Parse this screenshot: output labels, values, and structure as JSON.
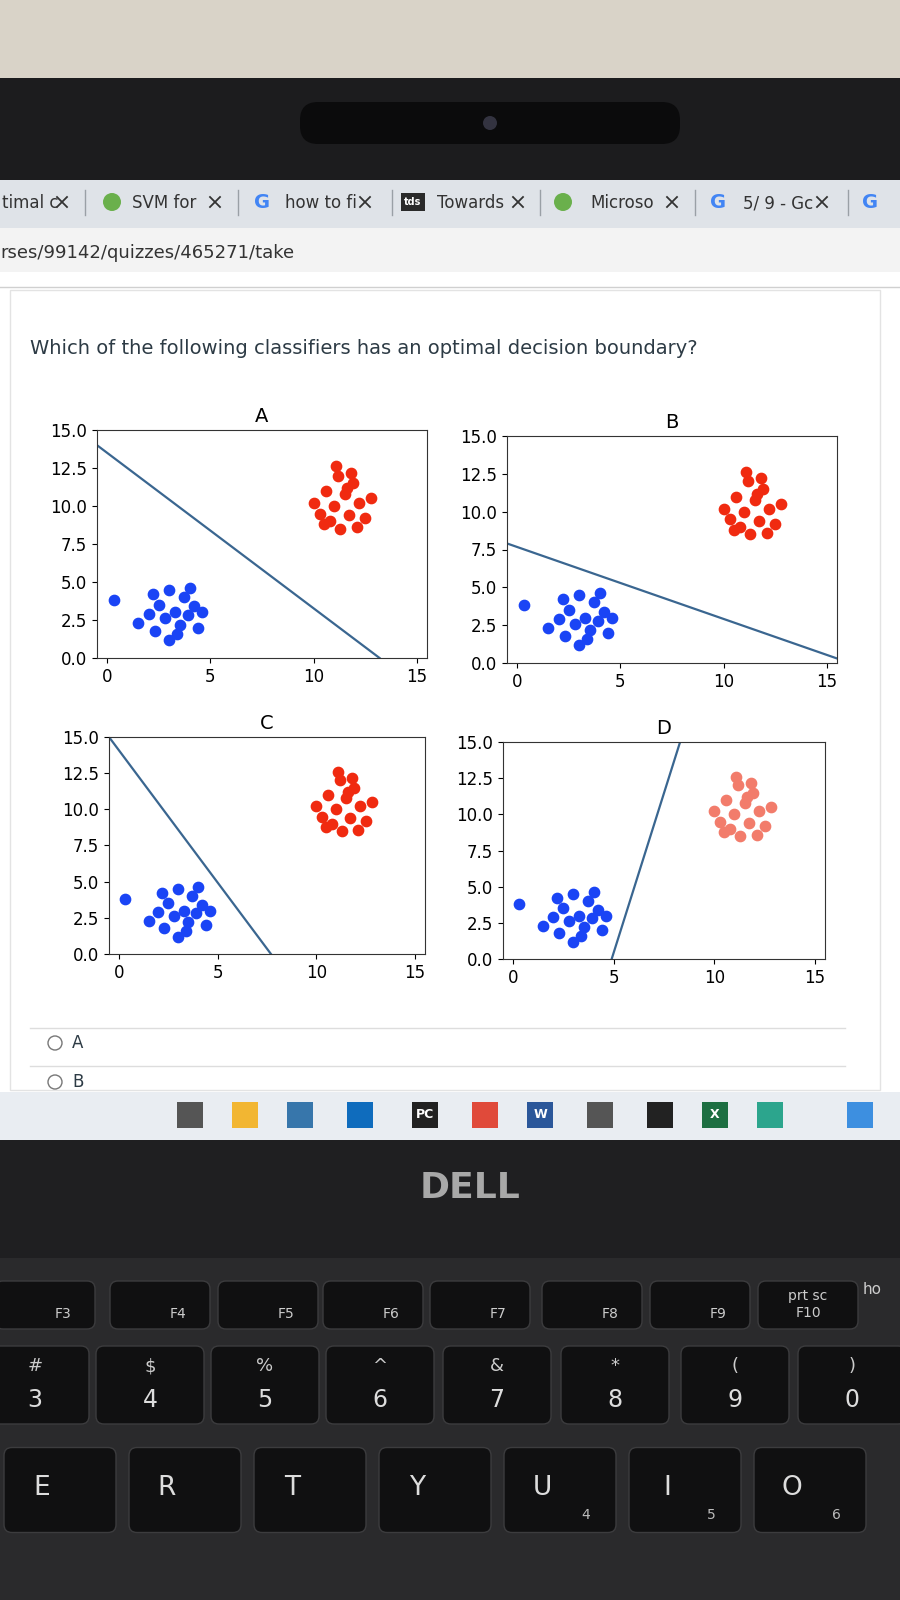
{
  "browser": {
    "tabs": [
      {
        "title": "timal c"
      },
      {
        "title": "SVM for"
      },
      {
        "title": "how to fi",
        "icon_text": "G"
      },
      {
        "title": "Towards",
        "icon_text": "tds"
      },
      {
        "title": "Microso"
      },
      {
        "title": "5/ 9 - Gc",
        "icon_text": "G"
      },
      {
        "icon_text": "G"
      }
    ],
    "url": "rses/99142/quizzes/465271/take"
  },
  "question": "Which of the following classifiers has an optimal decision boundary?",
  "chart_data": [
    {
      "type": "scatter",
      "title": "A",
      "xlim": [
        -0.5,
        15.5
      ],
      "ylim": [
        0,
        15
      ],
      "xticks": [
        0,
        5,
        10,
        15
      ],
      "yticks": [
        0.0,
        2.5,
        5.0,
        7.5,
        10.0,
        12.5,
        15.0
      ],
      "series": [
        {
          "type": "scatter",
          "color": "#1a44f5",
          "marker": "o",
          "x": [
            0.3,
            1.5,
            2.0,
            2.3,
            2.5,
            2.8,
            3.0,
            3.0,
            3.3,
            3.5,
            3.7,
            3.9,
            4.2,
            4.4,
            4.6,
            2.2,
            3.4,
            4.0
          ],
          "values": [
            3.8,
            2.3,
            2.9,
            1.8,
            3.5,
            2.6,
            4.5,
            1.2,
            3.0,
            2.2,
            4.0,
            2.8,
            3.4,
            2.0,
            3.0,
            4.2,
            1.6,
            4.6
          ]
        },
        {
          "type": "scatter",
          "color": "#f02a10",
          "marker": "o",
          "x": [
            10.0,
            10.3,
            10.6,
            10.8,
            11.0,
            11.2,
            11.3,
            11.5,
            11.7,
            11.9,
            12.2,
            12.5,
            12.8,
            11.1,
            11.8,
            10.5,
            12.1,
            11.6
          ],
          "values": [
            10.2,
            9.5,
            11.0,
            9.0,
            10.0,
            12.0,
            8.5,
            10.8,
            9.4,
            11.5,
            10.2,
            9.2,
            10.5,
            12.6,
            12.2,
            8.8,
            8.6,
            11.2
          ]
        },
        {
          "type": "line",
          "color": "#3a6690",
          "line_style": "solid",
          "x": [
            -0.5,
            13.2
          ],
          "values": [
            14.0,
            0.0
          ]
        }
      ]
    },
    {
      "type": "scatter",
      "title": "B",
      "xlim": [
        -0.5,
        15.5
      ],
      "ylim": [
        0,
        15
      ],
      "xticks": [
        0,
        5,
        10,
        15
      ],
      "yticks": [
        0.0,
        2.5,
        5.0,
        7.5,
        10.0,
        12.5,
        15.0
      ],
      "series": [
        {
          "type": "scatter",
          "color": "#1a44f5",
          "marker": "o",
          "x": [
            0.3,
            1.5,
            2.0,
            2.3,
            2.5,
            2.8,
            3.0,
            3.0,
            3.3,
            3.5,
            3.7,
            3.9,
            4.2,
            4.4,
            4.6,
            2.2,
            3.4,
            4.0
          ],
          "values": [
            3.8,
            2.3,
            2.9,
            1.8,
            3.5,
            2.6,
            4.5,
            1.2,
            3.0,
            2.2,
            4.0,
            2.8,
            3.4,
            2.0,
            3.0,
            4.2,
            1.6,
            4.6
          ]
        },
        {
          "type": "scatter",
          "color": "#f02a10",
          "marker": "o",
          "x": [
            10.0,
            10.3,
            10.6,
            10.8,
            11.0,
            11.2,
            11.3,
            11.5,
            11.7,
            11.9,
            12.2,
            12.5,
            12.8,
            11.1,
            11.8,
            10.5,
            12.1,
            11.6
          ],
          "values": [
            10.2,
            9.5,
            11.0,
            9.0,
            10.0,
            12.0,
            8.5,
            10.8,
            9.4,
            11.5,
            10.2,
            9.2,
            10.5,
            12.6,
            12.2,
            8.8,
            8.6,
            11.2
          ]
        },
        {
          "type": "line",
          "color": "#3a6690",
          "line_style": "solid",
          "x": [
            -0.5,
            15.5
          ],
          "values": [
            7.9,
            0.3
          ]
        }
      ]
    },
    {
      "type": "scatter",
      "title": "C",
      "xlim": [
        -0.5,
        15.5
      ],
      "ylim": [
        0,
        15
      ],
      "xticks": [
        0,
        5,
        10,
        15
      ],
      "yticks": [
        0.0,
        2.5,
        5.0,
        7.5,
        10.0,
        12.5,
        15.0
      ],
      "series": [
        {
          "type": "scatter",
          "color": "#1a44f5",
          "marker": "o",
          "x": [
            0.3,
            1.5,
            2.0,
            2.3,
            2.5,
            2.8,
            3.0,
            3.0,
            3.3,
            3.5,
            3.7,
            3.9,
            4.2,
            4.4,
            4.6,
            2.2,
            3.4,
            4.0
          ],
          "values": [
            3.8,
            2.3,
            2.9,
            1.8,
            3.5,
            2.6,
            4.5,
            1.2,
            3.0,
            2.2,
            4.0,
            2.8,
            3.4,
            2.0,
            3.0,
            4.2,
            1.6,
            4.6
          ]
        },
        {
          "type": "scatter",
          "color": "#f02a10",
          "marker": "o",
          "x": [
            10.0,
            10.3,
            10.6,
            10.8,
            11.0,
            11.2,
            11.3,
            11.5,
            11.7,
            11.9,
            12.2,
            12.5,
            12.8,
            11.1,
            11.8,
            10.5,
            12.1,
            11.6
          ],
          "values": [
            10.2,
            9.5,
            11.0,
            9.0,
            10.0,
            12.0,
            8.5,
            10.8,
            9.4,
            11.5,
            10.2,
            9.2,
            10.5,
            12.6,
            12.2,
            8.8,
            8.6,
            11.2
          ]
        },
        {
          "type": "line",
          "color": "#3a6690",
          "line_style": "solid",
          "x": [
            -0.5,
            7.7
          ],
          "values": [
            15.0,
            0.0
          ]
        }
      ]
    },
    {
      "type": "scatter",
      "title": "D",
      "xlim": [
        -0.5,
        15.5
      ],
      "ylim": [
        0,
        15
      ],
      "xticks": [
        0,
        5,
        10,
        15
      ],
      "yticks": [
        0.0,
        2.5,
        5.0,
        7.5,
        10.0,
        12.5,
        15.0
      ],
      "series": [
        {
          "type": "scatter",
          "color": "#1a44f5",
          "marker": "o",
          "x": [
            0.3,
            1.5,
            2.0,
            2.3,
            2.5,
            2.8,
            3.0,
            3.0,
            3.3,
            3.5,
            3.7,
            3.9,
            4.2,
            4.4,
            4.6,
            2.2,
            3.4,
            4.0
          ],
          "values": [
            3.8,
            2.3,
            2.9,
            1.8,
            3.5,
            2.6,
            4.5,
            1.2,
            3.0,
            2.2,
            4.0,
            2.8,
            3.4,
            2.0,
            3.0,
            4.2,
            1.6,
            4.6
          ]
        },
        {
          "type": "scatter",
          "color": "#f27c6b",
          "marker": "o",
          "x": [
            10.0,
            10.3,
            10.6,
            10.8,
            11.0,
            11.2,
            11.3,
            11.5,
            11.7,
            11.9,
            12.2,
            12.5,
            12.8,
            11.1,
            11.8,
            10.5,
            12.1,
            11.6
          ],
          "values": [
            10.2,
            9.5,
            11.0,
            9.0,
            10.0,
            12.0,
            8.5,
            10.8,
            9.4,
            11.5,
            10.2,
            9.2,
            10.5,
            12.6,
            12.2,
            8.8,
            8.6,
            11.2
          ]
        },
        {
          "type": "line",
          "color": "#3a6690",
          "line_style": "solid",
          "x": [
            4.9,
            8.3
          ],
          "values": [
            0.0,
            15.0
          ]
        }
      ]
    }
  ],
  "options": [
    "A",
    "B"
  ],
  "taskbar_labels": [
    "PC",
    "W",
    "X"
  ],
  "brand": "DELL",
  "keyboard": {
    "function_keys": [
      {
        "label": "F3"
      },
      {
        "label": "F4"
      },
      {
        "label": "F5"
      },
      {
        "label": "F6"
      },
      {
        "label": "F7"
      },
      {
        "label": "F8"
      },
      {
        "label": "F9"
      },
      {
        "label": "F10",
        "extra": "prt sc"
      }
    ],
    "number_keys": [
      {
        "label": "3",
        "shift": "#"
      },
      {
        "label": "4",
        "shift": "$"
      },
      {
        "label": "5",
        "shift": "%"
      },
      {
        "label": "6",
        "shift": "^"
      },
      {
        "label": "7",
        "shift": "&"
      },
      {
        "label": "8",
        "shift": "*"
      },
      {
        "label": "9",
        "shift": "("
      },
      {
        "label": "0",
        "shift": ")"
      }
    ],
    "letter_keys": [
      {
        "label": "E"
      },
      {
        "label": "R"
      },
      {
        "label": "T"
      },
      {
        "label": "Y"
      },
      {
        "label": "U",
        "numpad": "4"
      },
      {
        "label": "I",
        "numpad": "5"
      },
      {
        "label": "O",
        "numpad": "6"
      }
    ],
    "edge_key": "ho"
  }
}
